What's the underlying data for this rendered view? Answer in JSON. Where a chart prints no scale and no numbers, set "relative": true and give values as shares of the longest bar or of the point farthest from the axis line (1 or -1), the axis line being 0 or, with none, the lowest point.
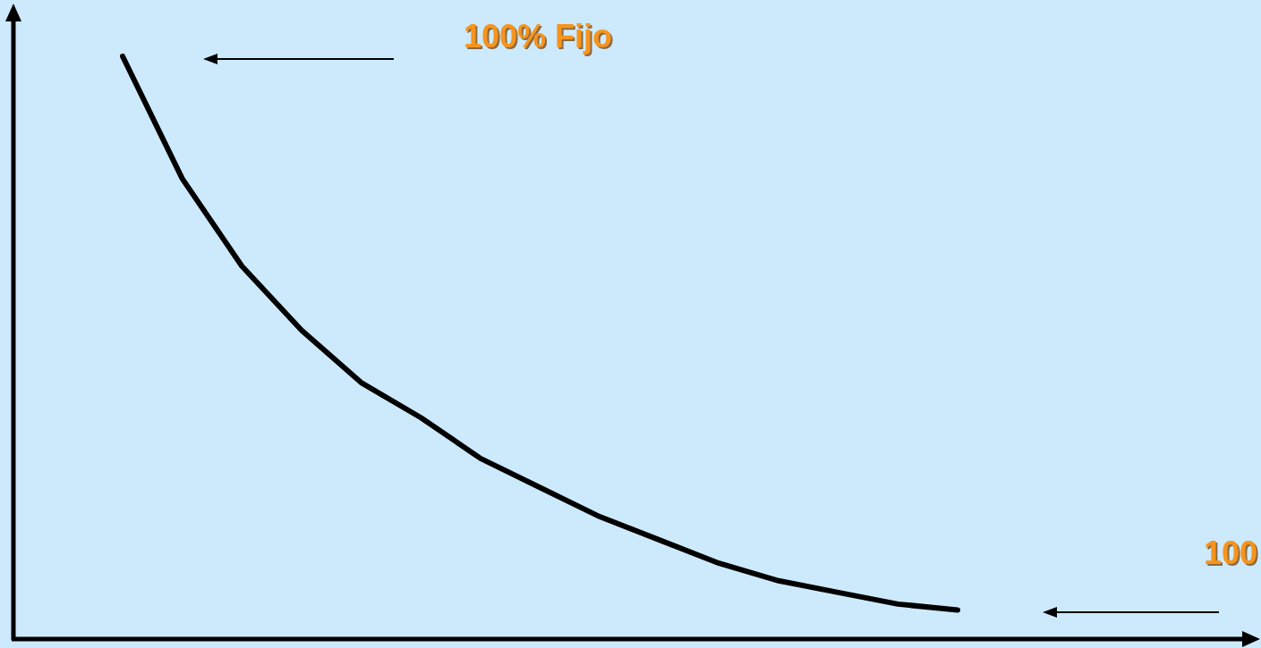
{
  "chart_data": {
    "type": "line",
    "relative": true,
    "color": "#000000",
    "marker": "none",
    "line_style": "solid",
    "categories": [
      null,
      null,
      null,
      null,
      null,
      null,
      null,
      null,
      null,
      null,
      null,
      null,
      null,
      null,
      null
    ],
    "values": [
      1.0,
      0.79,
      0.64,
      0.53,
      0.44,
      0.38,
      0.31,
      0.26,
      0.21,
      0.17,
      0.13,
      0.1,
      0.08,
      0.06,
      0.05
    ],
    "annotations": [
      "100% Fijo",
      "100"
    ]
  }
}
